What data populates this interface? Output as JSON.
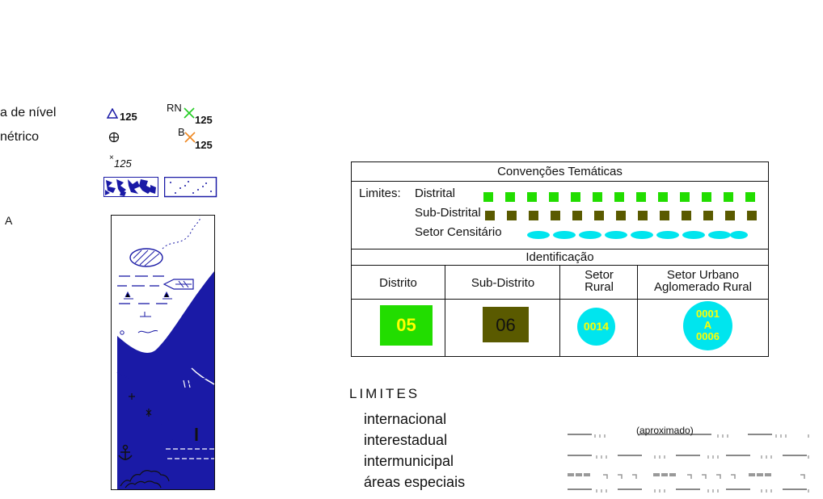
{
  "legend_top": {
    "contour_label": "a de nível",
    "benchmark_label": "nétrico",
    "triangle_value": "125",
    "rn_prefix": "RN",
    "rn_value": "125",
    "b_prefix": "B",
    "b_value": "125",
    "spot_value": "125",
    "section_letter": "A"
  },
  "thematic_table": {
    "title": "Convenções Temáticas",
    "limites_label": "Limites:",
    "rows": [
      {
        "label": "Distrital",
        "color": "#22dd00",
        "shape": "square"
      },
      {
        "label": "Sub-Distrital",
        "color": "#5a5a00",
        "shape": "square"
      },
      {
        "label": "Setor Censitário",
        "color": "#00e5ee",
        "shape": "ellipse"
      }
    ],
    "identification_title": "Identificação",
    "headers": [
      "Distrito",
      "Sub-Distrito",
      "Setor\nRural",
      "Setor Urbano\nAglomerado Rural"
    ],
    "samples": {
      "distrito": {
        "code": "05",
        "bg": "#22dd00",
        "fg": "#ffff00"
      },
      "sub_distrito": {
        "code": "06",
        "bg": "#5a5a00",
        "fg": "#111111"
      },
      "setor_rural": {
        "code": "0014",
        "bg": "#00e5ee",
        "fg": "#ffff00"
      },
      "setor_urbano": {
        "code_lines": [
          "0001",
          "A",
          "0006"
        ],
        "bg": "#00e5ee",
        "fg": "#ffff00"
      }
    }
  },
  "limites": {
    "heading": "LIMITES",
    "items": [
      "internacional",
      "interestadual",
      "intermunicipal",
      "áreas especiais"
    ],
    "approx_label": "(aproximado)"
  }
}
